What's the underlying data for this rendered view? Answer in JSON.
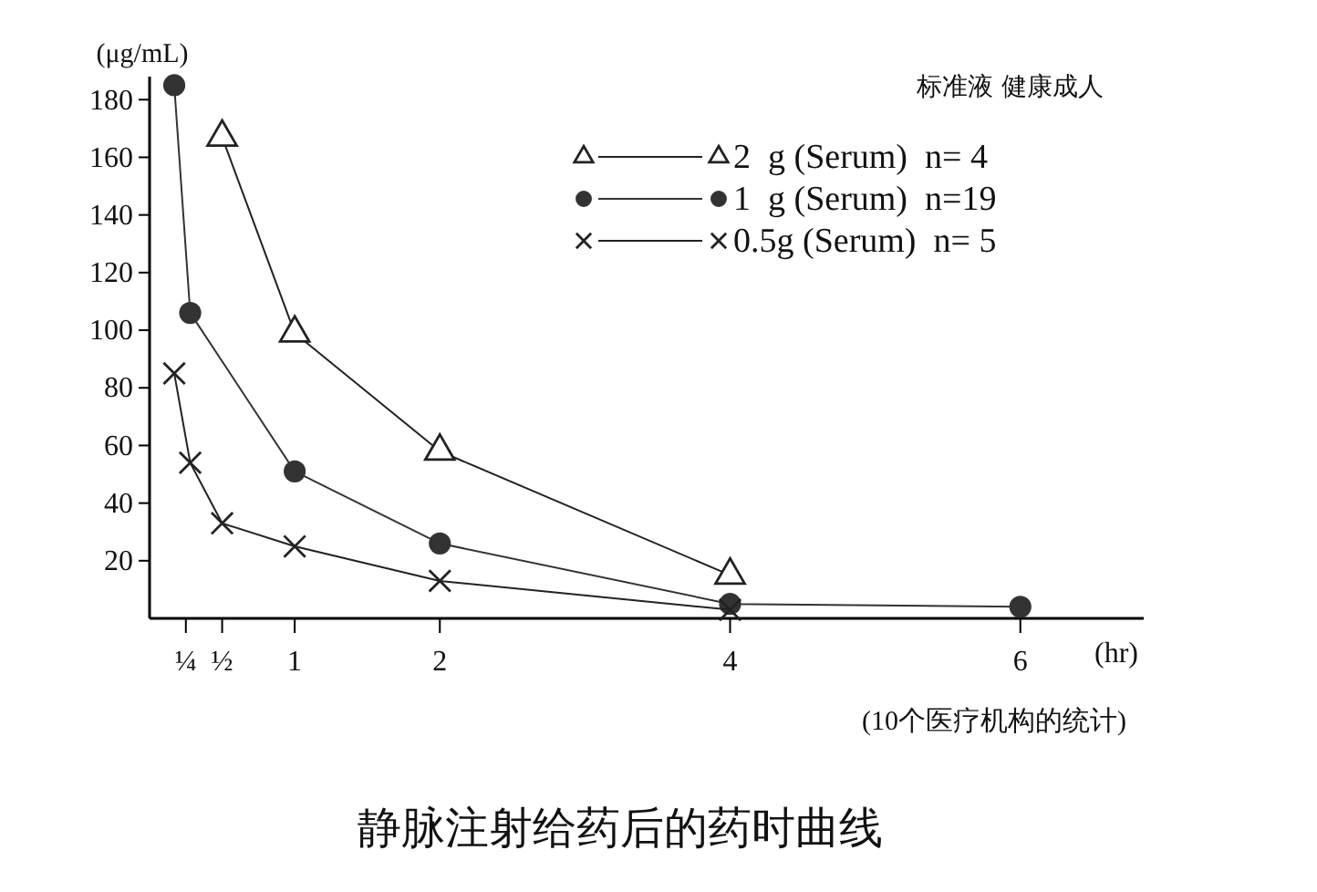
{
  "chart_data": {
    "type": "line",
    "title": "静脉注射给药后的药时曲线",
    "ylabel": "(μg/mL)",
    "xlabel": "(hr)",
    "legend_title": "标准液 健康成人",
    "legend": "top right",
    "annotations": [
      "(10个医疗机构的统计)"
    ],
    "xlim": [
      0,
      6.85
    ],
    "ylim": [
      0,
      188
    ],
    "xticks": [
      {
        "value": 0.25,
        "label": "¼"
      },
      {
        "value": 0.5,
        "label": "½"
      },
      1,
      2,
      4,
      6
    ],
    "yticks": [
      20,
      40,
      60,
      80,
      100,
      120,
      140,
      160,
      180
    ],
    "series": [
      {
        "name": "2  g (Serum)  n= 4",
        "color": "#222222",
        "marker": "triangle",
        "x": [
          0.5,
          1,
          2,
          4
        ],
        "values": [
          167,
          99,
          58,
          15
        ]
      },
      {
        "name": "1  g (Serum)  n=19",
        "color": "#333333",
        "marker": "circle",
        "x": [
          0.17,
          0.28,
          1,
          2,
          4,
          6
        ],
        "values": [
          185,
          106,
          51,
          26,
          5,
          4
        ]
      },
      {
        "name": "0.5g (Serum)  n= 5",
        "color": "#222222",
        "marker": "cross",
        "x": [
          0.17,
          0.28,
          0.5,
          1,
          2,
          4
        ],
        "values": [
          85,
          54,
          33,
          25,
          13,
          3
        ]
      }
    ]
  }
}
